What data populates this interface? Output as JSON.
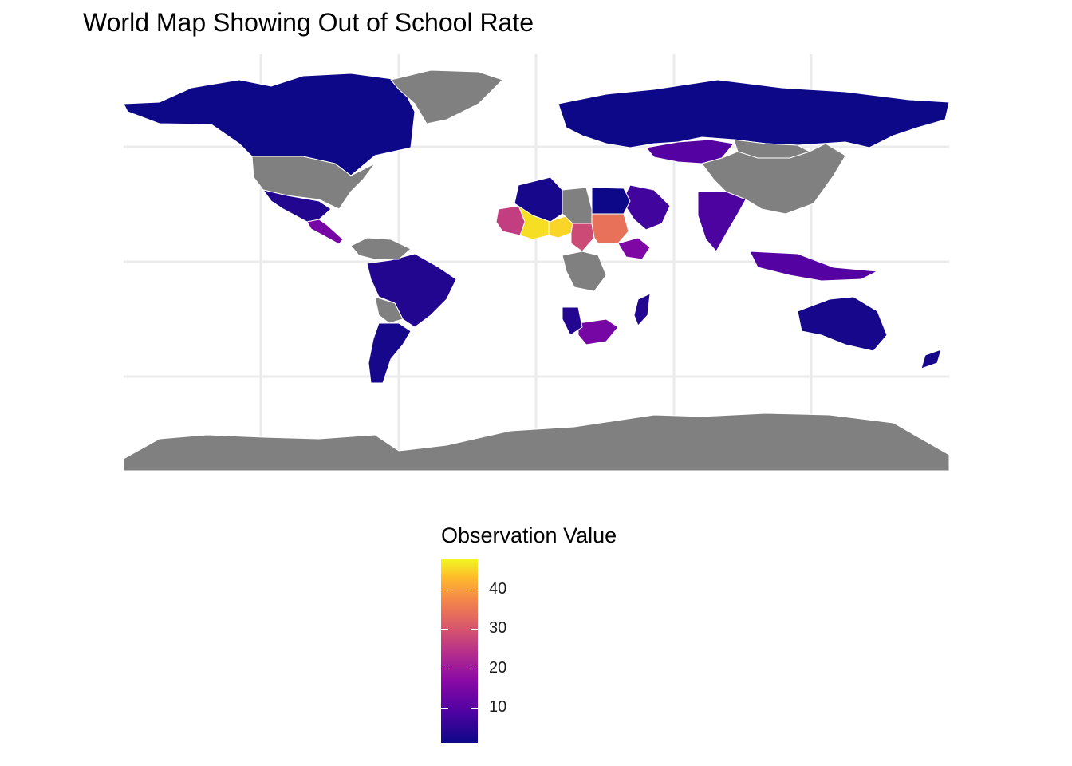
{
  "title": "World Map Showing Out of School Rate",
  "legend": {
    "title": "Observation Value",
    "breaks": [
      "40",
      "30",
      "20",
      "10"
    ],
    "colormap": "plasma",
    "range": [
      1,
      48
    ]
  },
  "colors": {
    "no_data": "#808080",
    "ocean": "#ffffff",
    "grid": "#ebebeb",
    "border": "#ffffff"
  },
  "chart_data": {
    "type": "choropleth",
    "title": "World Map Showing Out of School Rate",
    "value_label": "Observation Value",
    "grid": true,
    "legend_position": "bottom",
    "regions": [
      {
        "name": "Canada",
        "value": 1
      },
      {
        "name": "United States",
        "value": null
      },
      {
        "name": "Greenland",
        "value": null
      },
      {
        "name": "Mexico",
        "value": 3
      },
      {
        "name": "Central America",
        "value": 12
      },
      {
        "name": "Brazil",
        "value": 3
      },
      {
        "name": "Bolivia",
        "value": null
      },
      {
        "name": "Venezuela",
        "value": null
      },
      {
        "name": "Argentina",
        "value": 2
      },
      {
        "name": "Russia",
        "value": 1
      },
      {
        "name": "Kazakhstan",
        "value": 8
      },
      {
        "name": "China",
        "value": null
      },
      {
        "name": "Mongolia",
        "value": null
      },
      {
        "name": "India",
        "value": 7
      },
      {
        "name": "Saudi Arabia",
        "value": 6
      },
      {
        "name": "Mali",
        "value": 45
      },
      {
        "name": "Niger",
        "value": 44
      },
      {
        "name": "Mauritania",
        "value": 23
      },
      {
        "name": "Chad",
        "value": 25
      },
      {
        "name": "Sudan",
        "value": 31
      },
      {
        "name": "Egypt",
        "value": 1
      },
      {
        "name": "Libya",
        "value": null
      },
      {
        "name": "Algeria",
        "value": 2
      },
      {
        "name": "Ethiopia",
        "value": 13
      },
      {
        "name": "DR Congo",
        "value": null
      },
      {
        "name": "South Africa",
        "value": 12
      },
      {
        "name": "Namibia",
        "value": 3
      },
      {
        "name": "Madagascar",
        "value": 3
      },
      {
        "name": "Indonesia",
        "value": 8
      },
      {
        "name": "Australia",
        "value": 2
      },
      {
        "name": "New Zealand",
        "value": 2
      },
      {
        "name": "Antarctica",
        "value": null
      }
    ]
  }
}
